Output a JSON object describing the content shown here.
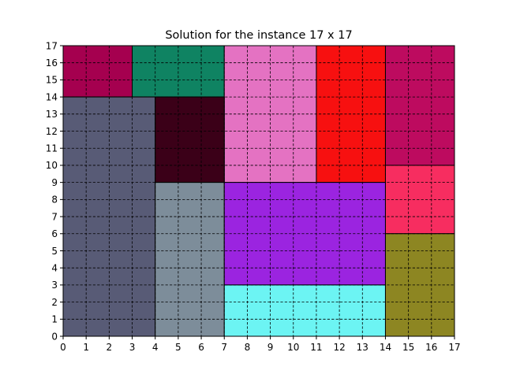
{
  "chart_data": {
    "type": "rectangle-packing",
    "title": "Solution for the instance 17 x 17",
    "xlabel": "",
    "ylabel": "",
    "xlim": [
      0,
      17
    ],
    "ylim": [
      0,
      17
    ],
    "xticks": [
      "0",
      "1",
      "2",
      "3",
      "4",
      "5",
      "6",
      "7",
      "8",
      "9",
      "10",
      "11",
      "12",
      "13",
      "14",
      "15",
      "16",
      "17"
    ],
    "yticks": [
      "0",
      "1",
      "2",
      "3",
      "4",
      "5",
      "6",
      "7",
      "8",
      "9",
      "10",
      "11",
      "12",
      "13",
      "14",
      "15",
      "16",
      "17"
    ],
    "grid": true,
    "rectangles": [
      {
        "x": 0,
        "y": 14,
        "w": 3,
        "h": 3,
        "color": "#a5004f"
      },
      {
        "x": 3,
        "y": 14,
        "w": 4,
        "h": 3,
        "color": "#0f8362"
      },
      {
        "x": 7,
        "y": 9,
        "w": 4,
        "h": 8,
        "color": "#e472c2"
      },
      {
        "x": 11,
        "y": 9,
        "w": 3,
        "h": 8,
        "color": "#f71010"
      },
      {
        "x": 14,
        "y": 10,
        "w": 3,
        "h": 7,
        "color": "#bd0b5f"
      },
      {
        "x": 0,
        "y": 0,
        "w": 4,
        "h": 14,
        "color": "#585b76"
      },
      {
        "x": 4,
        "y": 9,
        "w": 3,
        "h": 5,
        "color": "#3b0018"
      },
      {
        "x": 4,
        "y": 0,
        "w": 3,
        "h": 9,
        "color": "#7d8d9a"
      },
      {
        "x": 7,
        "y": 3,
        "w": 7,
        "h": 6,
        "color": "#9b24e0"
      },
      {
        "x": 14,
        "y": 6,
        "w": 3,
        "h": 4,
        "color": "#f72d60"
      },
      {
        "x": 7,
        "y": 0,
        "w": 7,
        "h": 3,
        "color": "#6cf4f3"
      },
      {
        "x": 14,
        "y": 0,
        "w": 3,
        "h": 6,
        "color": "#8d8622"
      }
    ]
  }
}
